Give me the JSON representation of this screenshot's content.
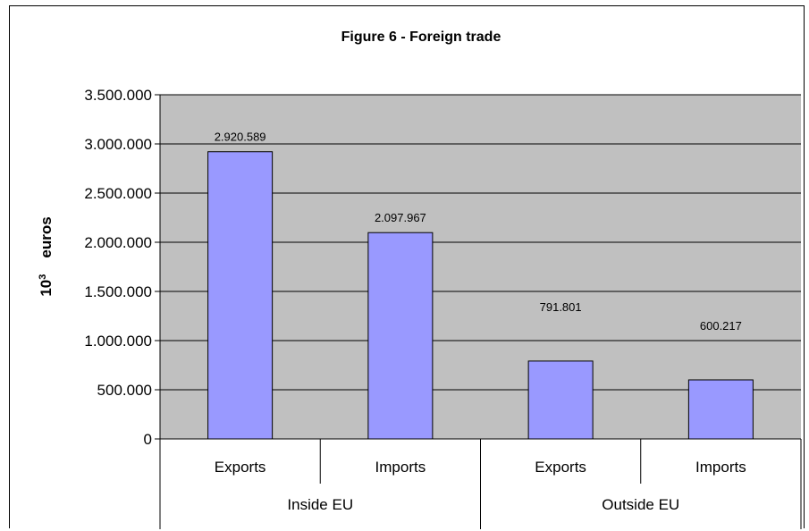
{
  "chart_data": {
    "type": "bar",
    "title": "Figure 6 - Foreign trade",
    "ylabel_base": "10",
    "ylabel_exp": "3",
    "ylabel_unit": "euros",
    "xlabel": "",
    "ylim": [
      0,
      3500000
    ],
    "y_ticks": [
      0,
      500000,
      1000000,
      1500000,
      2000000,
      2500000,
      3000000,
      3500000
    ],
    "y_tick_labels": [
      "0",
      "500.000",
      "1.000.000",
      "1.500.000",
      "2.000.000",
      "2.500.000",
      "3.000.000",
      "3.500.000"
    ],
    "categories": [
      "Exports",
      "Imports",
      "Exports",
      "Imports"
    ],
    "groups": [
      {
        "label": "Inside EU",
        "span": 2
      },
      {
        "label": "Outside EU",
        "span": 2
      }
    ],
    "values": [
      2920589,
      2097967,
      791801,
      600217
    ],
    "data_labels": [
      "2.920.589",
      "2.097.967",
      "791.801",
      "600.217"
    ],
    "grid": true,
    "colors": {
      "bar": "#9999ff",
      "plot_bg": "#c0c0c0",
      "grid": "#000000"
    }
  }
}
